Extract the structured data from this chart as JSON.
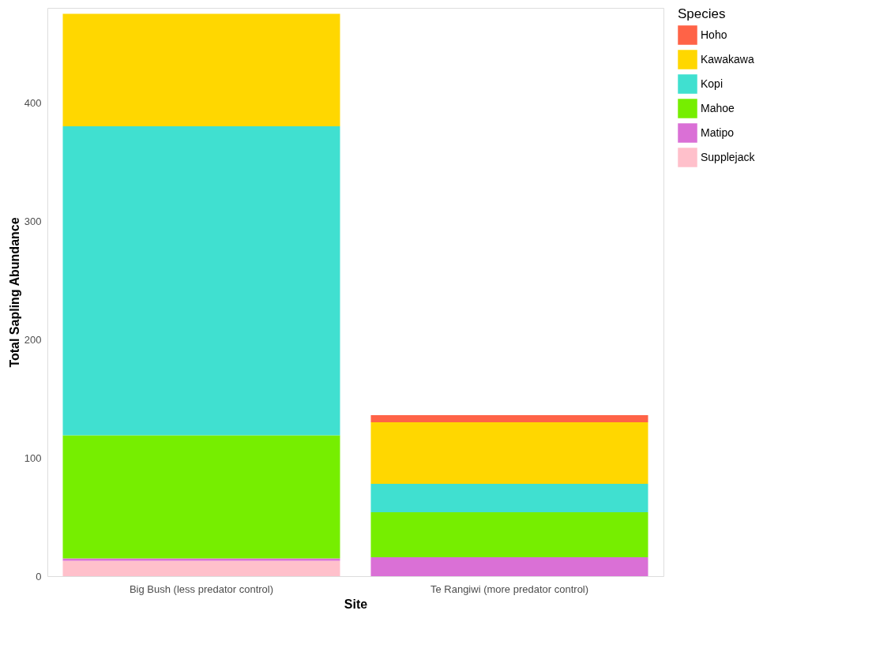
{
  "chart_data": {
    "type": "bar",
    "stacked": true,
    "xlabel": "Site",
    "ylabel": "Total Sapling Abundance",
    "legend_title": "Species",
    "legend": "right",
    "grid": false,
    "categories": [
      "Big Bush (less predator control)",
      "Te Rangiwi (more predator control)"
    ],
    "ylim": [
      0,
      480
    ],
    "yticks": [
      0,
      100,
      200,
      300,
      400
    ],
    "series": [
      {
        "name": "Supplejack",
        "color": "#ffc0cb",
        "values": [
          13,
          0
        ]
      },
      {
        "name": "Matipo",
        "color": "#da70d6",
        "values": [
          2,
          16
        ]
      },
      {
        "name": "Mahoe",
        "color": "#76ee00",
        "values": [
          104,
          38
        ]
      },
      {
        "name": "Kopi",
        "color": "#40e0d0",
        "values": [
          261,
          24
        ]
      },
      {
        "name": "Kawakawa",
        "color": "#ffd700",
        "values": [
          95,
          52
        ]
      },
      {
        "name": "Hoho",
        "color": "#ff6347",
        "values": [
          0,
          6
        ]
      }
    ]
  }
}
